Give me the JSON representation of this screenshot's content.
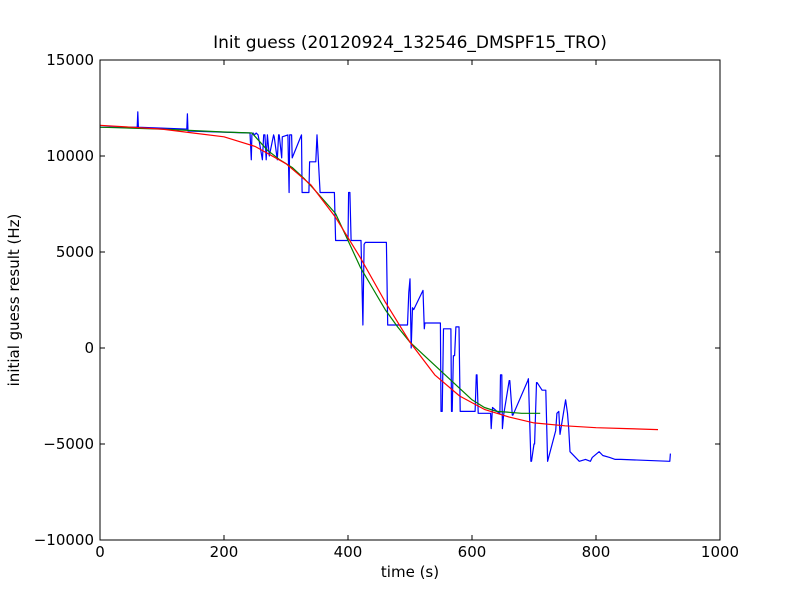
{
  "chart_data": {
    "type": "line",
    "title": "Init guess (20120924_132546_DMSPF15_TRO)",
    "xlabel": "time (s)",
    "ylabel": "initial guess result (Hz)",
    "xlim": [
      0,
      1000
    ],
    "ylim": [
      -10000,
      15000
    ],
    "xticks": [
      0,
      200,
      400,
      600,
      800,
      1000
    ],
    "yticks": [
      -10000,
      -5000,
      0,
      5000,
      10000,
      15000
    ],
    "xtick_labels": [
      "0",
      "200",
      "400",
      "600",
      "800",
      "1000"
    ],
    "ytick_labels": [
      "−10000",
      "−5000",
      "0",
      "5000",
      "10000",
      "15000"
    ],
    "grid": false,
    "legend": null,
    "series": [
      {
        "color": "#0000ff",
        "x": [
          0,
          60,
          61,
          62,
          140,
          141,
          142,
          242,
          244,
          245,
          247,
          249,
          252,
          255,
          262,
          264,
          266,
          268,
          270,
          273,
          280,
          281,
          286,
          288,
          289,
          293,
          294,
          303,
          305,
          306,
          309,
          310,
          325,
          326,
          337,
          338,
          341,
          348,
          350,
          355,
          357,
          359,
          362,
          378,
          380,
          381,
          383,
          400,
          401,
          403,
          405,
          421,
          424,
          426,
          428,
          430,
          433,
          462,
          464,
          466,
          469,
          496,
          498,
          500,
          502,
          504,
          506,
          521,
          523,
          524,
          526,
          549,
          550,
          552,
          554,
          566,
          567,
          568,
          570,
          572,
          574,
          579,
          581,
          582,
          584,
          605,
          607,
          608,
          610,
          622,
          630,
          631,
          633,
          644,
          645,
          646,
          648,
          649,
          651,
          660,
          661,
          665,
          666,
          690,
          691,
          695,
          696,
          700,
          701,
          704,
          705,
          713,
          716,
          719,
          722,
          735,
          737,
          740,
          742,
          751,
          754,
          756,
          758,
          773,
          783,
          791,
          794,
          805,
          811,
          822,
          831,
          840,
          919,
          920
        ],
        "y": [
          11500,
          11500,
          12300,
          11500,
          11400,
          12200,
          11300,
          11200,
          9800,
          11100,
          11200,
          11100,
          11200,
          11100,
          9800,
          11100,
          11100,
          9800,
          11100,
          10000,
          11100,
          11000,
          9800,
          11100,
          11100,
          9900,
          11000,
          11100,
          8100,
          11100,
          11100,
          9900,
          11100,
          8100,
          8100,
          9700,
          9700,
          9700,
          11100,
          8100,
          8100,
          8100,
          8100,
          8100,
          5600,
          5600,
          5600,
          5600,
          8100,
          8100,
          5600,
          5600,
          1200,
          5400,
          5500,
          5500,
          5500,
          5500,
          1200,
          1200,
          1200,
          1200,
          2900,
          3600,
          0,
          2100,
          2000,
          3000,
          1000,
          1300,
          1300,
          1300,
          -3300,
          -3300,
          1000,
          1000,
          -3300,
          -3300,
          -400,
          -400,
          1100,
          1100,
          -3300,
          -3300,
          -3300,
          -3300,
          -1400,
          -1400,
          -3400,
          -3400,
          -3400,
          -4200,
          -3100,
          -3400,
          -3400,
          -1400,
          -1400,
          -4200,
          -3500,
          -1700,
          -1700,
          -3500,
          -3500,
          -1700,
          -1600,
          -5900,
          -5900,
          -5000,
          -5000,
          -1800,
          -1800,
          -2200,
          -2200,
          -2200,
          -5900,
          -4300,
          -3400,
          -3300,
          -4500,
          -2700,
          -3400,
          -4200,
          -5400,
          -5900,
          -5800,
          -5900,
          -5700,
          -5400,
          -5600,
          -5700,
          -5800,
          -5800,
          -5900,
          -5500
        ]
      },
      {
        "color": "#008000",
        "x": [
          0,
          100,
          200,
          245,
          270,
          290,
          310,
          330,
          350,
          380,
          400,
          420,
          440,
          460,
          480,
          500,
          520,
          540,
          560,
          580,
          600,
          620,
          640,
          660,
          680,
          700,
          710
        ],
        "y": [
          11500,
          11400,
          11250,
          11200,
          10300,
          9800,
          9400,
          8800,
          8100,
          7000,
          5600,
          4200,
          3100,
          2000,
          1100,
          300,
          -300,
          -900,
          -1500,
          -2100,
          -2700,
          -3100,
          -3300,
          -3350,
          -3400,
          -3400,
          -3400
        ]
      },
      {
        "color": "#ff0000",
        "x": [
          0,
          50,
          100,
          150,
          200,
          250,
          300,
          340,
          380,
          420,
          460,
          500,
          540,
          580,
          620,
          660,
          700,
          750,
          800,
          850,
          900
        ],
        "y": [
          11600,
          11500,
          11400,
          11200,
          11000,
          10500,
          9600,
          8500,
          6800,
          4700,
          2400,
          300,
          -1400,
          -2500,
          -3200,
          -3600,
          -3900,
          -4050,
          -4150,
          -4200,
          -4250
        ]
      }
    ]
  }
}
